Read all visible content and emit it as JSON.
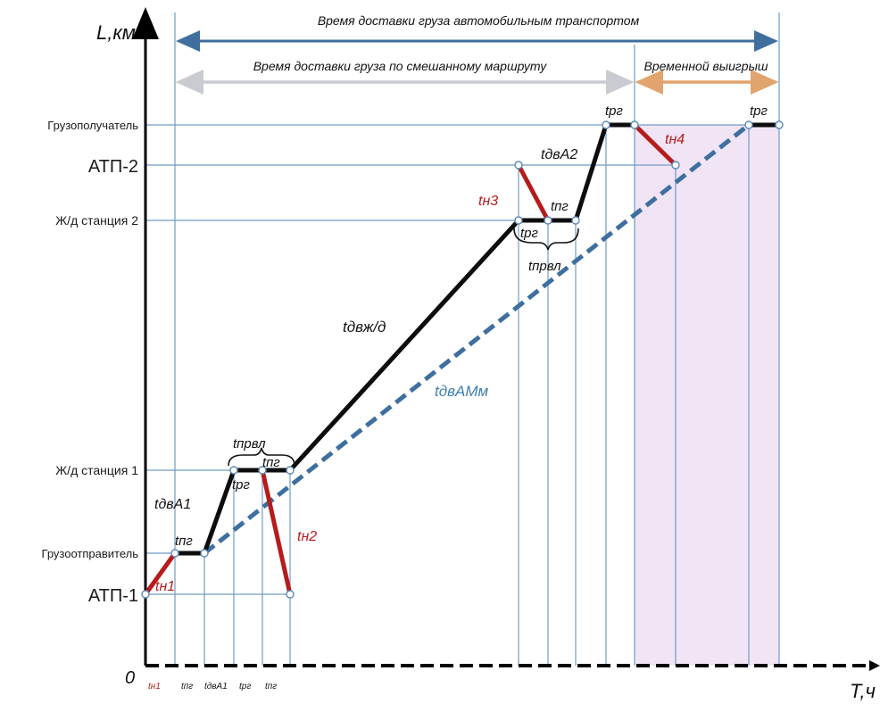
{
  "axes": {
    "y_title": "L,км",
    "x_title": "T,ч",
    "origin": "0"
  },
  "y_labels": {
    "receiver": "Грузополучатель",
    "atp2": "АТП-2",
    "rail2": "Ж/д станция 2",
    "rail1": "Ж/д станция 1",
    "sender": "Грузоотправитель",
    "atp1": "АТП-1"
  },
  "spans": {
    "road_time": "Время доставки груза автомобильным транспортом",
    "mixed_time": "Время доставки груза по смешанному маршруту",
    "gain": "Временной выигрыш"
  },
  "segment_labels": {
    "tn1": "tн1",
    "tpg1": "tпг",
    "tdvA1": "tдвА1",
    "tprvl1": "tпрвл",
    "trg1": "tрг",
    "tpg2": "tпг",
    "tn2": "tн2",
    "tdv_rail": "tдвж/д",
    "tdvAMm": "tдвАМм",
    "tn3": "tн3",
    "trg2": "tрг",
    "tpg3": "tпг",
    "tprvl2": "tпрвл",
    "tdvA2": "tдвА2",
    "trg3": "tрг",
    "tn4": "tн4",
    "trg4": "tрг"
  },
  "x_tick_labels": {
    "tn1": "tн1",
    "tpg": "tпг",
    "tdvA1": "tдвА1",
    "trg": "tрг",
    "tpg2": "tпг"
  },
  "colors": {
    "axis": "#000000",
    "mixed_route": "#0d0d0d",
    "empty_run": "#b51c1c",
    "road_route": "#3f6f9f",
    "guide_lines": "#6f9cc8",
    "span_arrow_road": "#3f6f9f",
    "span_arrow_mixed": "#c8ccd0",
    "span_arrow_gain": "#e2a46e",
    "gain_fill": "#f1e4f5"
  }
}
